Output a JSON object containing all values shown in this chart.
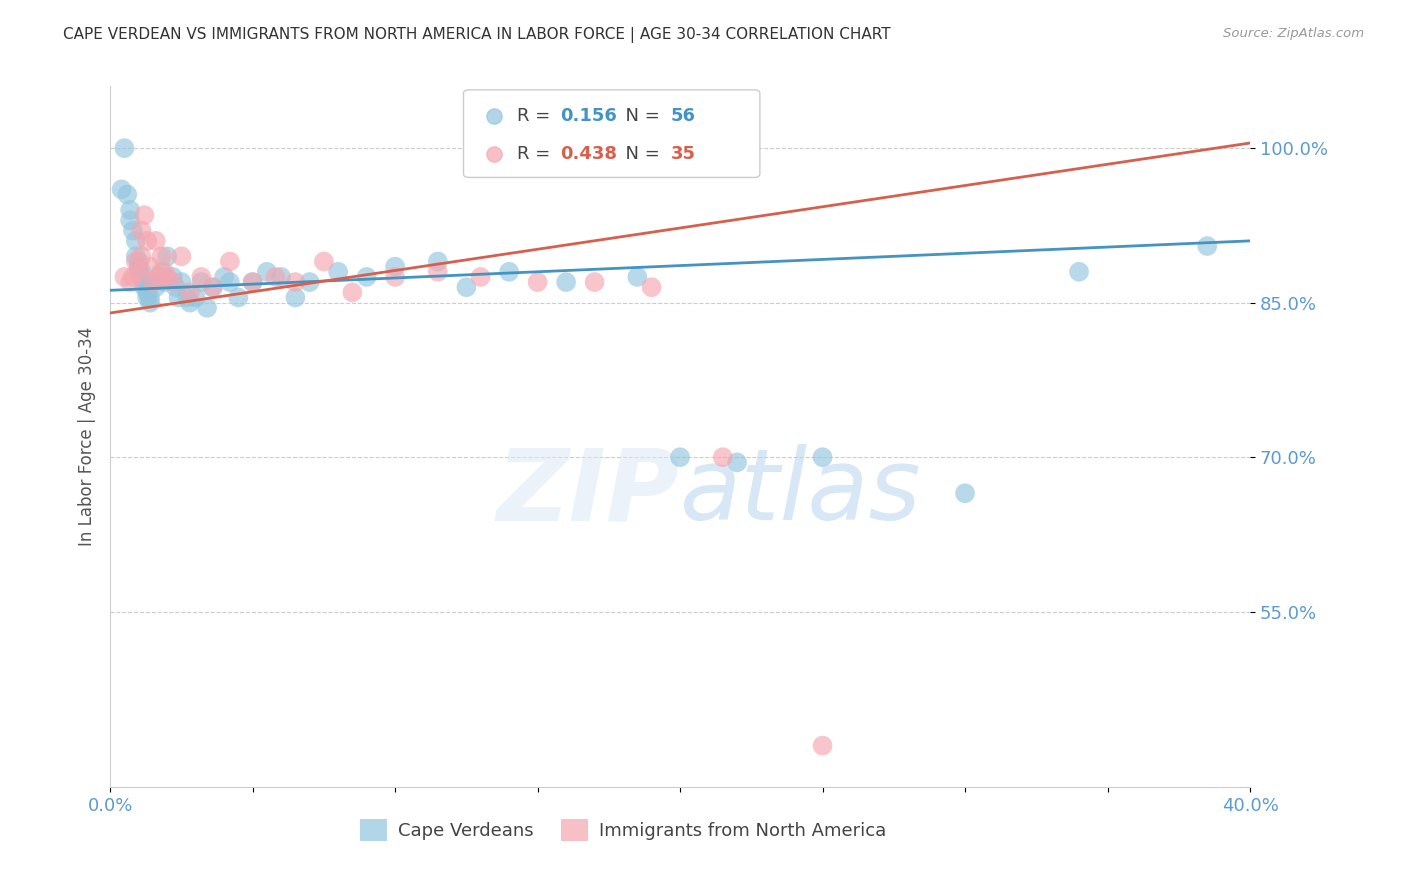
{
  "title": "CAPE VERDEAN VS IMMIGRANTS FROM NORTH AMERICA IN LABOR FORCE | AGE 30-34 CORRELATION CHART",
  "source": "Source: ZipAtlas.com",
  "ylabel": "In Labor Force | Age 30-34",
  "xlim": [
    0.0,
    0.4
  ],
  "ylim": [
    0.38,
    1.06
  ],
  "yticks": [
    0.55,
    0.7,
    0.85,
    1.0
  ],
  "ytick_labels": [
    "55.0%",
    "70.0%",
    "85.0%",
    "100.0%"
  ],
  "xticks": [
    0.0,
    0.05,
    0.1,
    0.15,
    0.2,
    0.25,
    0.3,
    0.35,
    0.4
  ],
  "xtick_labels": [
    "0.0%",
    "",
    "",
    "",
    "",
    "",
    "",
    "",
    "40.0%"
  ],
  "watermark_zip": "ZIP",
  "watermark_atlas": "atlas",
  "legend_blue_label": "Cape Verdeans",
  "legend_pink_label": "Immigrants from North America",
  "R_blue": 0.156,
  "N_blue": 56,
  "R_pink": 0.438,
  "N_pink": 35,
  "blue_color": "#92c5de",
  "pink_color": "#f4a6b0",
  "blue_line_color": "#4393c3",
  "pink_line_color": "#d6604d",
  "axis_color": "#5b9bd5",
  "grid_color": "#cccccc",
  "title_color": "#333333",
  "blue_scatter_x": [
    0.004,
    0.005,
    0.006,
    0.007,
    0.007,
    0.008,
    0.009,
    0.009,
    0.01,
    0.01,
    0.011,
    0.011,
    0.012,
    0.012,
    0.013,
    0.013,
    0.014,
    0.014,
    0.015,
    0.016,
    0.017,
    0.018,
    0.019,
    0.02,
    0.022,
    0.023,
    0.024,
    0.025,
    0.027,
    0.028,
    0.03,
    0.032,
    0.034,
    0.036,
    0.04,
    0.042,
    0.045,
    0.05,
    0.055,
    0.06,
    0.065,
    0.07,
    0.08,
    0.09,
    0.1,
    0.115,
    0.125,
    0.14,
    0.16,
    0.185,
    0.2,
    0.22,
    0.25,
    0.3,
    0.34,
    0.385
  ],
  "blue_scatter_y": [
    0.96,
    1.0,
    0.955,
    0.94,
    0.93,
    0.92,
    0.91,
    0.895,
    0.885,
    0.89,
    0.875,
    0.88,
    0.87,
    0.865,
    0.855,
    0.86,
    0.85,
    0.855,
    0.87,
    0.865,
    0.875,
    0.88,
    0.87,
    0.895,
    0.875,
    0.865,
    0.855,
    0.87,
    0.855,
    0.85,
    0.855,
    0.87,
    0.845,
    0.865,
    0.875,
    0.87,
    0.855,
    0.87,
    0.88,
    0.875,
    0.855,
    0.87,
    0.88,
    0.875,
    0.885,
    0.89,
    0.865,
    0.88,
    0.87,
    0.875,
    0.7,
    0.695,
    0.7,
    0.665,
    0.88,
    0.905
  ],
  "pink_scatter_x": [
    0.005,
    0.007,
    0.008,
    0.009,
    0.01,
    0.011,
    0.011,
    0.012,
    0.013,
    0.014,
    0.015,
    0.016,
    0.017,
    0.018,
    0.019,
    0.02,
    0.022,
    0.025,
    0.028,
    0.032,
    0.036,
    0.042,
    0.05,
    0.058,
    0.065,
    0.075,
    0.085,
    0.1,
    0.115,
    0.13,
    0.15,
    0.17,
    0.19,
    0.215,
    0.25
  ],
  "pink_scatter_y": [
    0.875,
    0.87,
    0.875,
    0.89,
    0.88,
    0.895,
    0.92,
    0.935,
    0.91,
    0.885,
    0.87,
    0.91,
    0.875,
    0.895,
    0.88,
    0.875,
    0.87,
    0.895,
    0.86,
    0.875,
    0.865,
    0.89,
    0.87,
    0.875,
    0.87,
    0.89,
    0.86,
    0.875,
    0.88,
    0.875,
    0.87,
    0.87,
    0.865,
    0.7,
    0.42
  ],
  "blue_trend_x": [
    0.0,
    0.4
  ],
  "blue_trend_y": [
    0.862,
    0.91
  ],
  "pink_trend_x": [
    0.0,
    0.4
  ],
  "pink_trend_y": [
    0.84,
    1.005
  ]
}
